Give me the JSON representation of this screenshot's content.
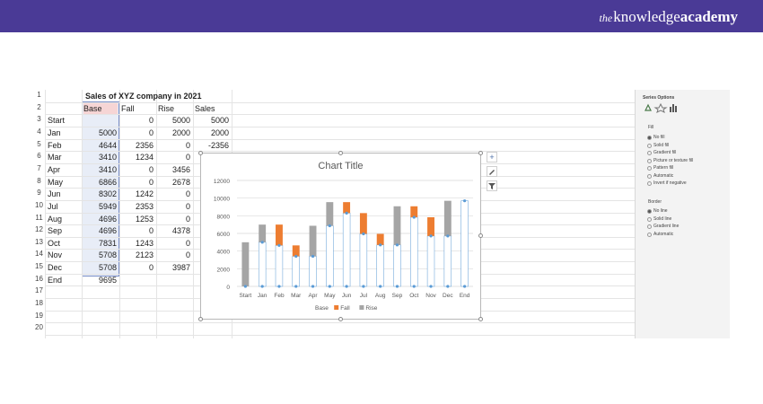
{
  "brand": {
    "prefix": "the",
    "name": "knowledge",
    "suffix": "academy"
  },
  "sheet": {
    "row_numbers": [
      "1",
      "2",
      "3",
      "4",
      "5",
      "6",
      "7",
      "8",
      "9",
      "10",
      "11",
      "12",
      "13",
      "14",
      "15",
      "16",
      "17",
      "18",
      "19",
      "20"
    ],
    "title": "Sales of XYZ company in 2021",
    "headers": [
      "Base",
      "Fall",
      "Rise",
      "Sales"
    ],
    "rows": [
      {
        "label": "Start",
        "base": "",
        "fall": "0",
        "rise": "5000",
        "sales": "5000"
      },
      {
        "label": "Jan",
        "base": "5000",
        "fall": "0",
        "rise": "2000",
        "sales": "2000"
      },
      {
        "label": "Feb",
        "base": "4644",
        "fall": "2356",
        "rise": "0",
        "sales": "-2356"
      },
      {
        "label": "Mar",
        "base": "3410",
        "fall": "1234",
        "rise": "0",
        "sales": ""
      },
      {
        "label": "Apr",
        "base": "3410",
        "fall": "0",
        "rise": "3456",
        "sales": ""
      },
      {
        "label": "May",
        "base": "6866",
        "fall": "0",
        "rise": "2678",
        "sales": ""
      },
      {
        "label": "Jun",
        "base": "8302",
        "fall": "1242",
        "rise": "0",
        "sales": ""
      },
      {
        "label": "Jul",
        "base": "5949",
        "fall": "2353",
        "rise": "0",
        "sales": ""
      },
      {
        "label": "Aug",
        "base": "4696",
        "fall": "1253",
        "rise": "0",
        "sales": ""
      },
      {
        "label": "Sep",
        "base": "4696",
        "fall": "0",
        "rise": "4378",
        "sales": ""
      },
      {
        "label": "Oct",
        "base": "7831",
        "fall": "1243",
        "rise": "0",
        "sales": ""
      },
      {
        "label": "Nov",
        "base": "5708",
        "fall": "2123",
        "rise": "0",
        "sales": ""
      },
      {
        "label": "Dec",
        "base": "5708",
        "fall": "0",
        "rise": "3987",
        "sales": ""
      },
      {
        "label": "End",
        "base": "9695",
        "fall": "",
        "rise": "",
        "sales": ""
      }
    ]
  },
  "chart_data": {
    "type": "bar",
    "stacked": true,
    "title": "Chart Title",
    "categories": [
      "Start",
      "Jan",
      "Feb",
      "Mar",
      "Apr",
      "May",
      "Jun",
      "Jul",
      "Aug",
      "Sep",
      "Oct",
      "Nov",
      "Dec",
      "End"
    ],
    "series": [
      {
        "name": "Base",
        "values": [
          0,
          5000,
          4644,
          3410,
          3410,
          6866,
          8302,
          5949,
          4696,
          4696,
          7831,
          5708,
          5708,
          9695
        ],
        "color": "#ffffff",
        "line_color": "#5b9bd5"
      },
      {
        "name": "Fall",
        "values": [
          0,
          0,
          2356,
          1234,
          0,
          0,
          1242,
          2353,
          1253,
          0,
          1243,
          2123,
          0,
          0
        ],
        "color": "#ed7d31"
      },
      {
        "name": "Rise",
        "values": [
          5000,
          2000,
          0,
          0,
          3456,
          2678,
          0,
          0,
          0,
          4378,
          0,
          0,
          3987,
          0
        ],
        "color": "#a5a5a5"
      }
    ],
    "yticks": [
      0,
      2000,
      4000,
      6000,
      8000,
      10000,
      12000
    ],
    "ylim": [
      0,
      12000
    ],
    "grid": true,
    "legend": "bottom"
  },
  "pane": {
    "title": "Series Options",
    "fill_header": "Fill",
    "fill_options": [
      "No fill",
      "Solid fill",
      "Gradient fill",
      "Picture or texture fill",
      "Pattern fill",
      "Automatic",
      "Invert if negative"
    ],
    "border_header": "Border",
    "border_options": [
      "No line",
      "Solid line",
      "Gradient line",
      "Automatic"
    ]
  }
}
